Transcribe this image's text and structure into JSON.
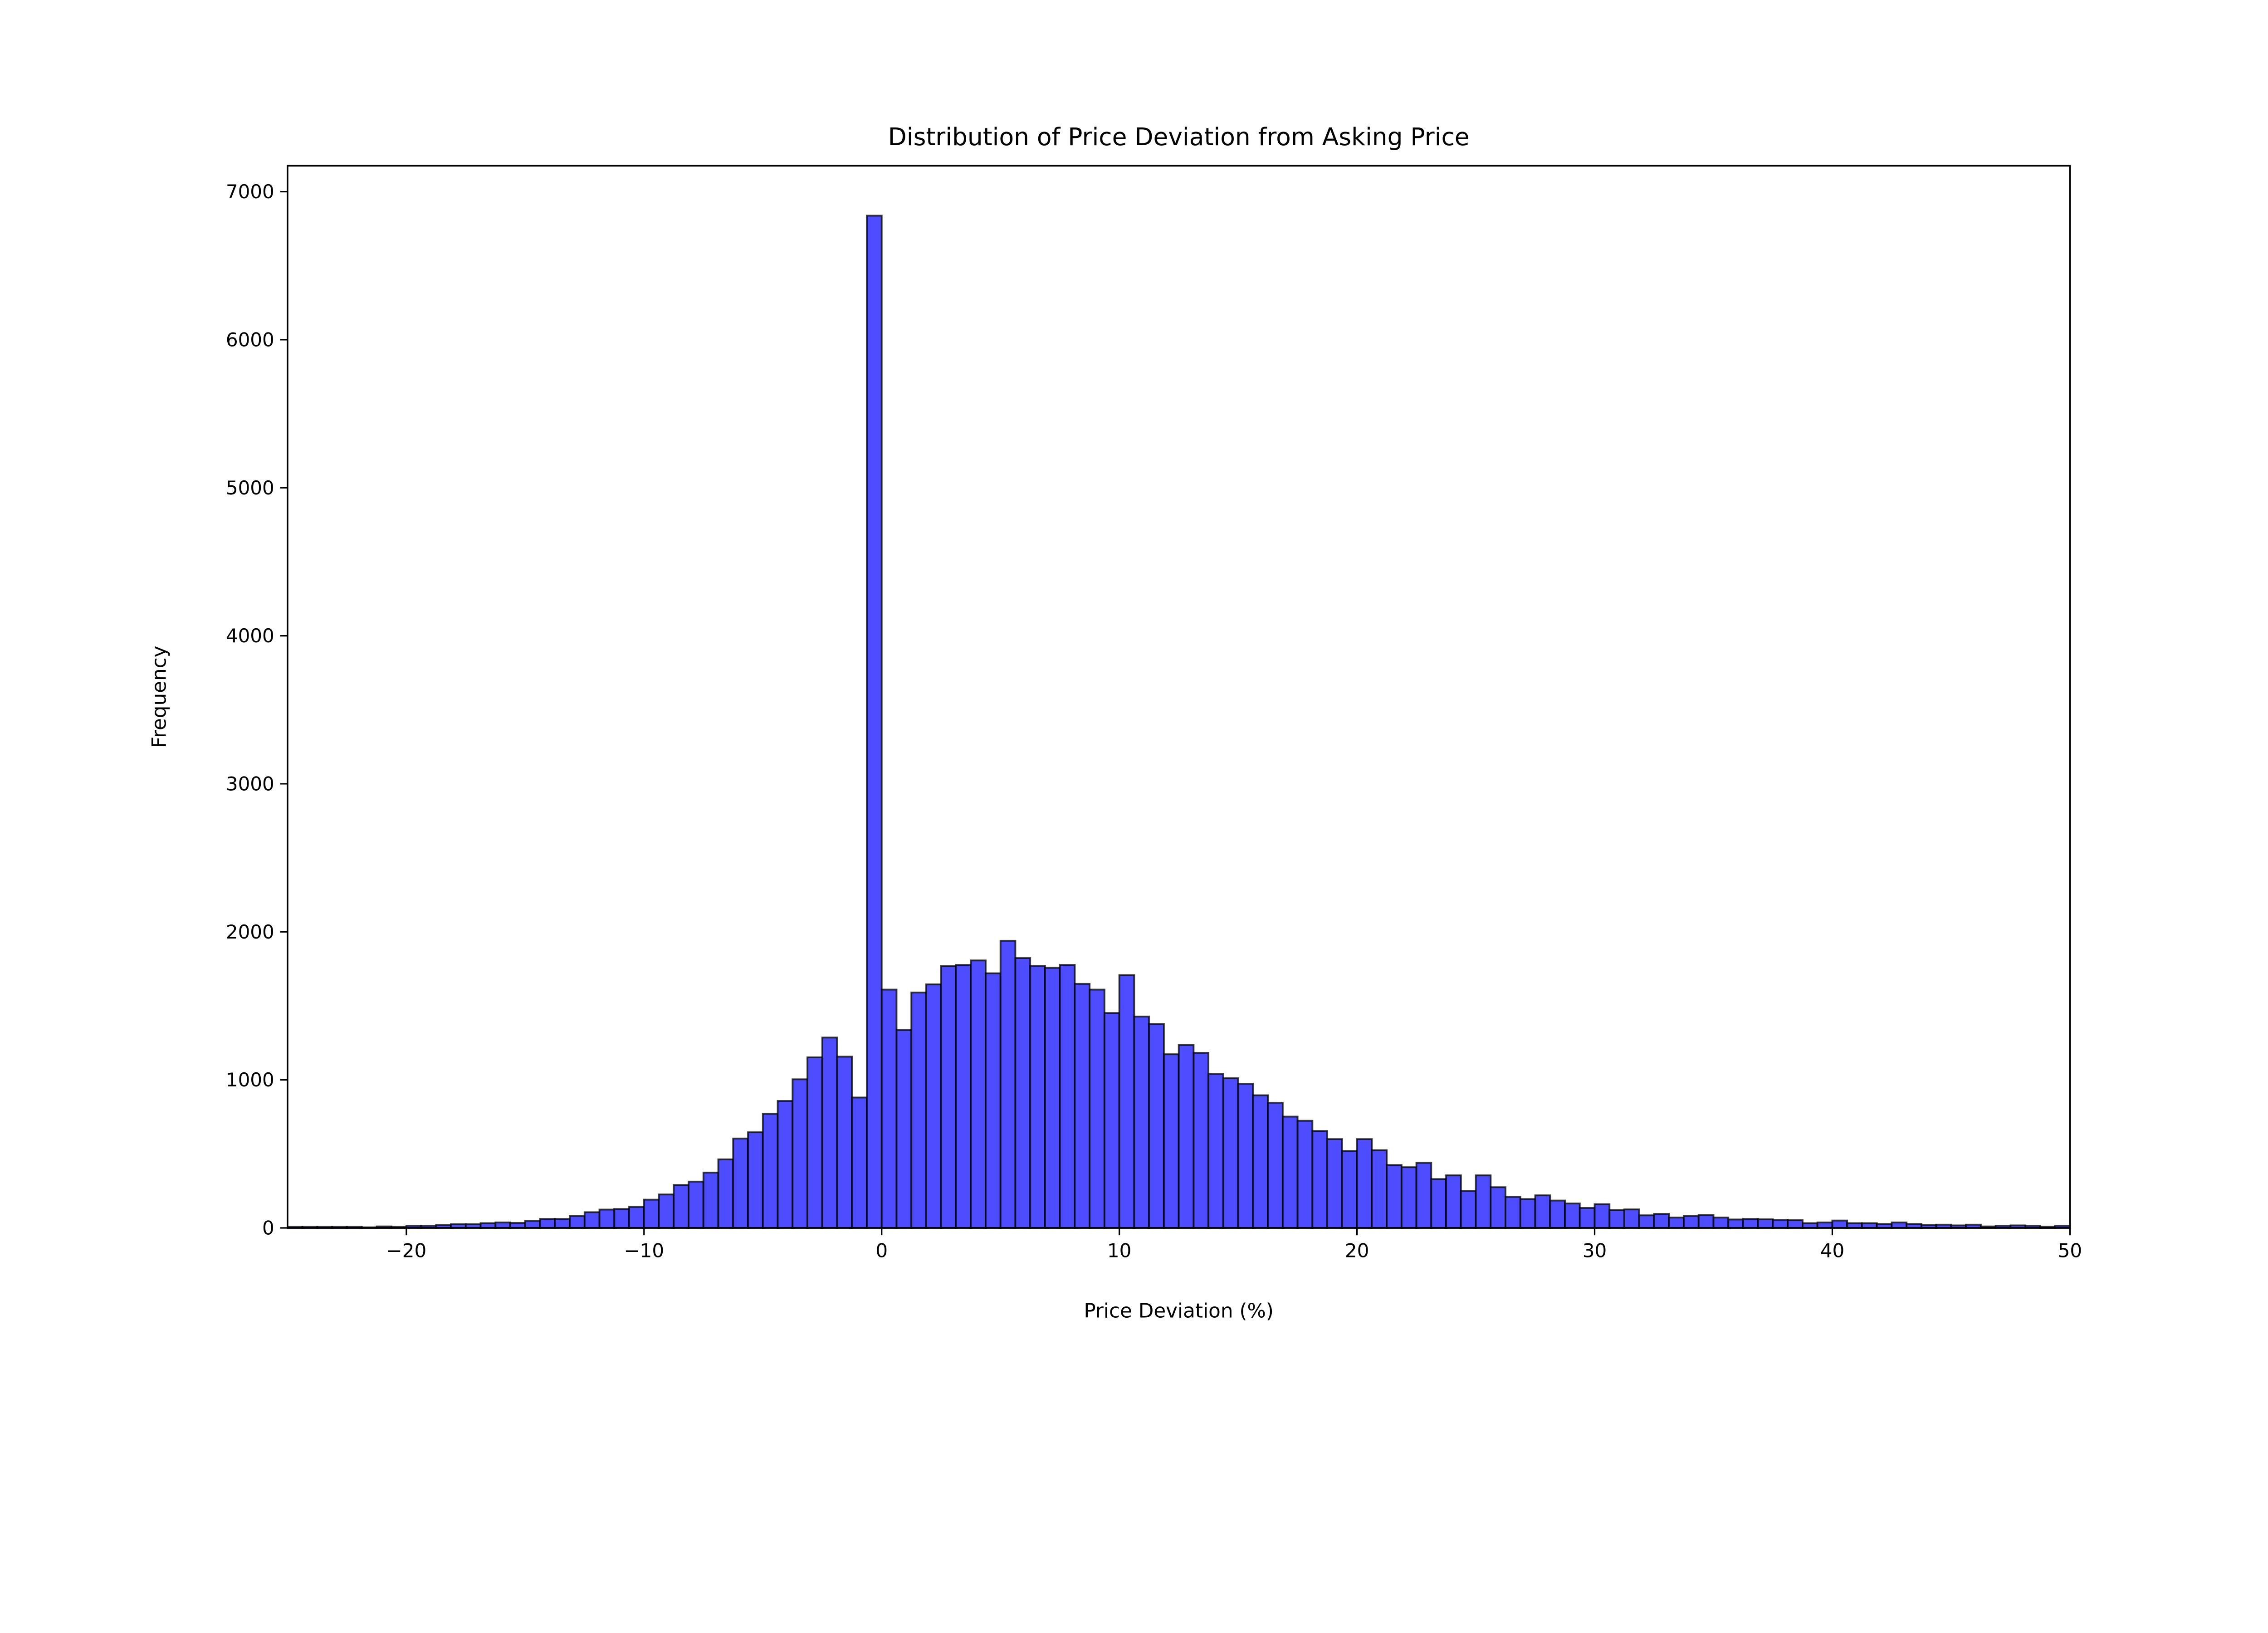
{
  "chart_data": {
    "type": "bar",
    "subtype": "histogram",
    "title": "Distribution of Price Deviation from Asking Price",
    "xlabel": "Price Deviation (%)",
    "ylabel": "Frequency",
    "xlim": [
      -25,
      50
    ],
    "ylim": [
      0,
      7175
    ],
    "bin_start": -25,
    "bin_width": 0.625,
    "values": [
      7,
      7,
      7,
      7,
      7,
      4,
      10,
      7,
      15,
      15,
      20,
      25,
      25,
      32,
      37,
      34,
      48,
      61,
      61,
      81,
      106,
      124,
      128,
      142,
      191,
      226,
      290,
      313,
      374,
      463,
      604,
      646,
      771,
      858,
      1004,
      1152,
      1286,
      1157,
      881,
      6838,
      1610,
      1337,
      1590,
      1645,
      1768,
      1777,
      1807,
      1720,
      1940,
      1823,
      1770,
      1757,
      1777,
      1649,
      1610,
      1452,
      1707,
      1428,
      1378,
      1173,
      1236,
      1183,
      1041,
      1011,
      974,
      896,
      846,
      752,
      724,
      655,
      600,
      520,
      600,
      525,
      425,
      410,
      440,
      330,
      355,
      250,
      355,
      275,
      210,
      195,
      220,
      185,
      165,
      135,
      160,
      120,
      125,
      85,
      95,
      70,
      81,
      87,
      70,
      57,
      61,
      58,
      55,
      52,
      32,
      37,
      50,
      32,
      32,
      27,
      37,
      27,
      20,
      22,
      17,
      22,
      10,
      15,
      17,
      15,
      8,
      15
    ],
    "x_ticks": [
      -20,
      -10,
      0,
      10,
      20,
      30,
      40,
      50
    ],
    "x_tick_labels": [
      "−20",
      "−10",
      "0",
      "10",
      "20",
      "30",
      "40",
      "50"
    ],
    "y_ticks": [
      0,
      1000,
      2000,
      3000,
      4000,
      5000,
      6000,
      7000
    ],
    "y_tick_labels": [
      "0",
      "1000",
      "2000",
      "3000",
      "4000",
      "5000",
      "6000",
      "7000"
    ],
    "grid": false,
    "bar_color": "#4d4dff",
    "edge_color": "#000000"
  }
}
